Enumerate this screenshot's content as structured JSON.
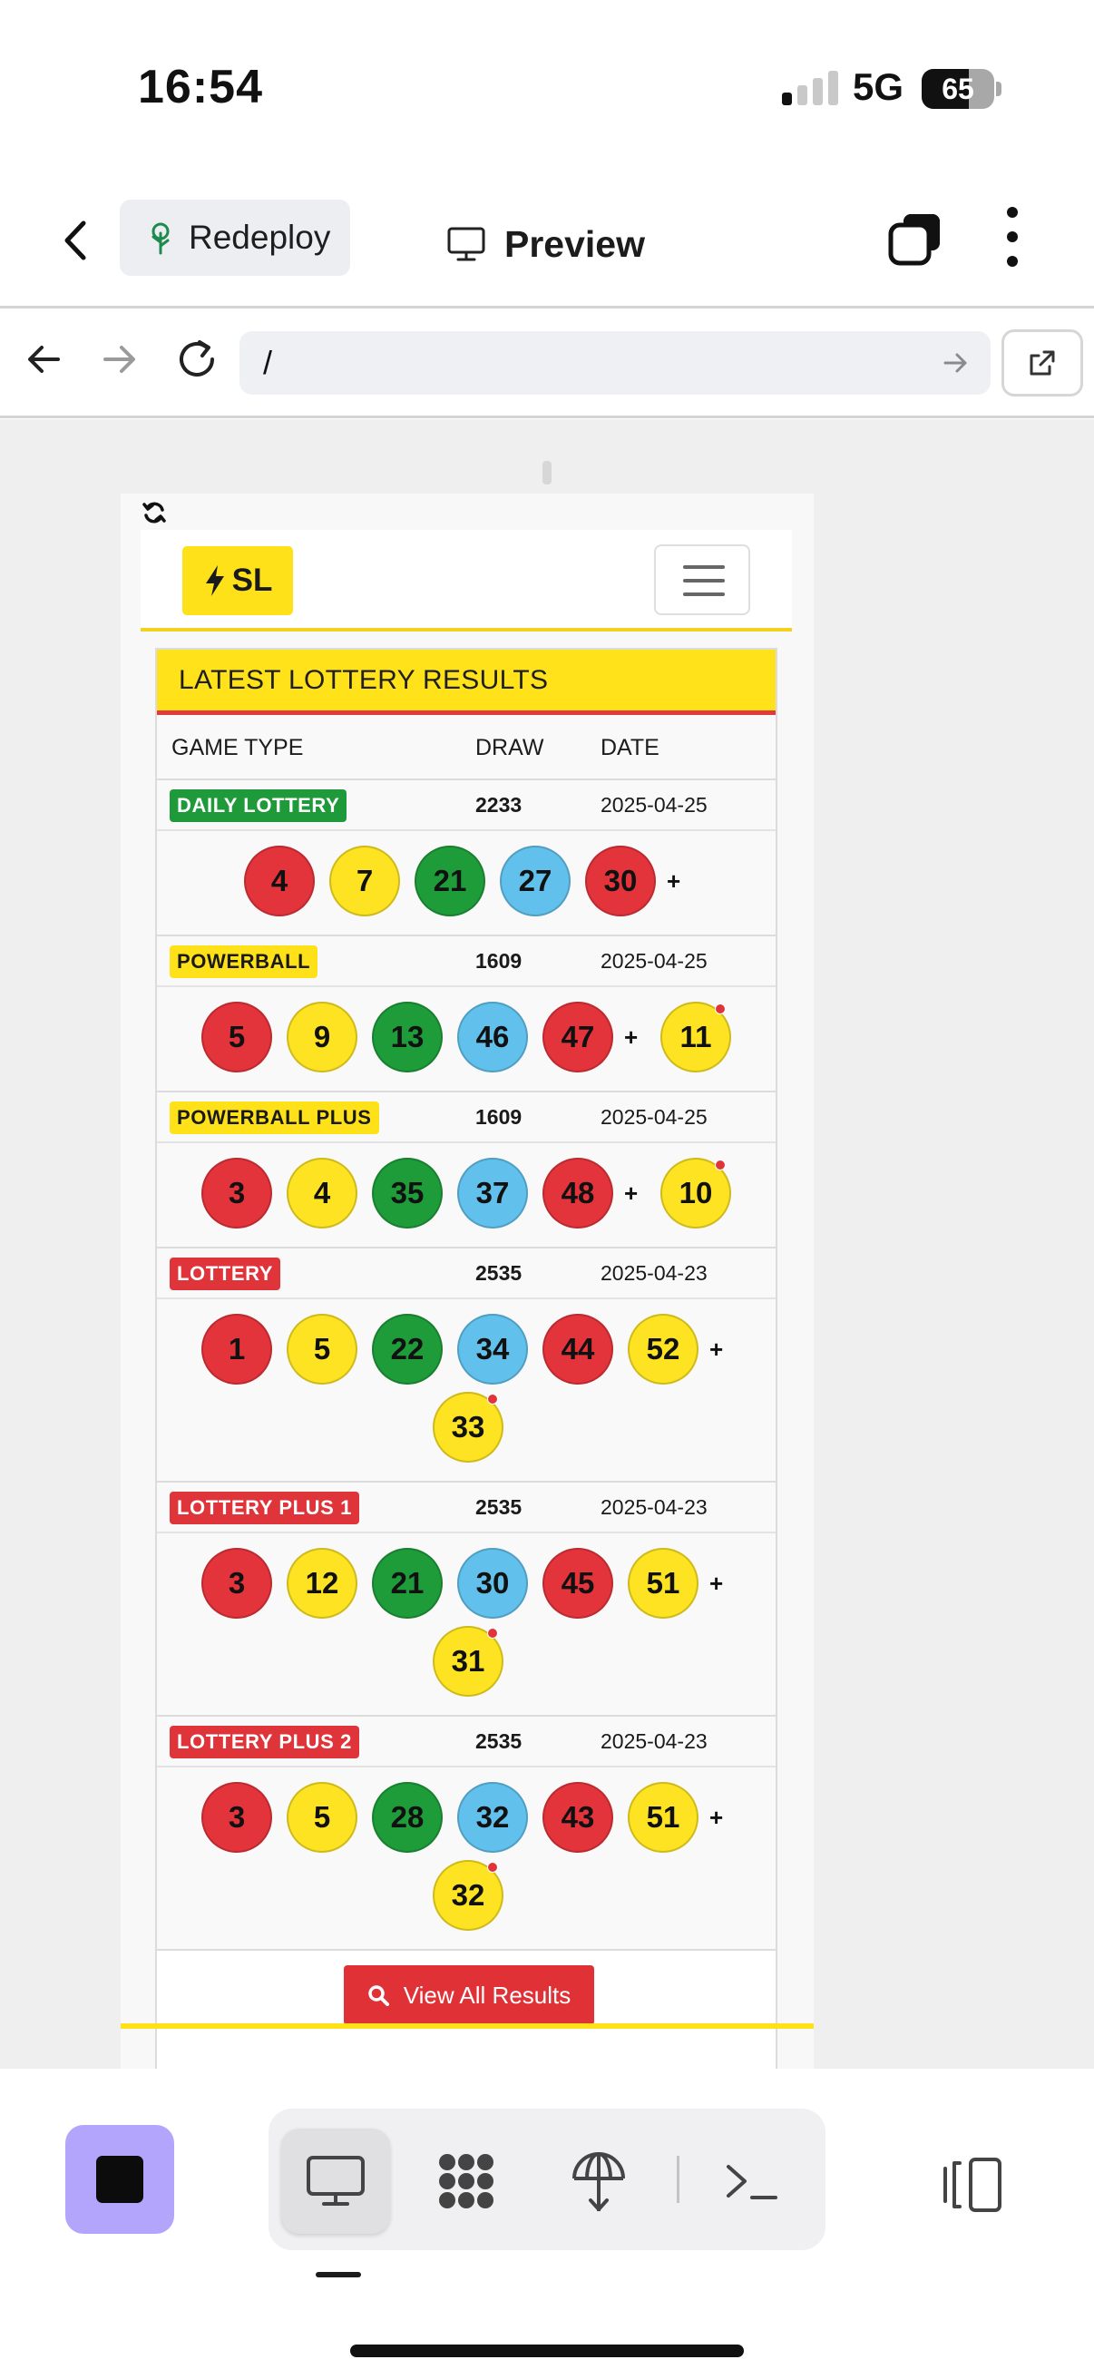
{
  "status_bar": {
    "time": "16:54",
    "network": "5G",
    "battery": "65",
    "battery_level": 0.65
  },
  "header": {
    "redeploy_label": "Redeploy",
    "title": "Preview"
  },
  "browser": {
    "url": "/"
  },
  "site": {
    "brand": "SL",
    "results_title": "LATEST LOTTERY RESULTS",
    "columns": {
      "game_type": "GAME TYPE",
      "draw": "DRAW",
      "date": "DATE"
    },
    "plus_sign": "+",
    "games": [
      {
        "name": "DAILY LOTTERY",
        "badge_color": "green",
        "draw": "2233",
        "date": "2025-04-25",
        "balls": [
          "4",
          "7",
          "21",
          "27",
          "30"
        ],
        "bonus": ""
      },
      {
        "name": "POWERBALL",
        "badge_color": "yellow",
        "draw": "1609",
        "date": "2025-04-25",
        "balls": [
          "5",
          "9",
          "13",
          "46",
          "47"
        ],
        "bonus": "11"
      },
      {
        "name": "POWERBALL PLUS",
        "badge_color": "yellow",
        "draw": "1609",
        "date": "2025-04-25",
        "balls": [
          "3",
          "4",
          "35",
          "37",
          "48"
        ],
        "bonus": "10"
      },
      {
        "name": "LOTTERY",
        "badge_color": "red",
        "draw": "2535",
        "date": "2025-04-23",
        "balls": [
          "1",
          "5",
          "22",
          "34",
          "44",
          "52"
        ],
        "bonus": "33"
      },
      {
        "name": "LOTTERY PLUS 1",
        "badge_color": "red",
        "draw": "2535",
        "date": "2025-04-23",
        "balls": [
          "3",
          "12",
          "21",
          "30",
          "45",
          "51"
        ],
        "bonus": "31"
      },
      {
        "name": "LOTTERY PLUS 2",
        "badge_color": "red",
        "draw": "2535",
        "date": "2025-04-23",
        "balls": [
          "3",
          "5",
          "28",
          "32",
          "43",
          "51"
        ],
        "bonus": "32"
      }
    ],
    "view_all_label": "View All Results"
  },
  "toolbar": {
    "items": [
      "preview-icon",
      "network-icon",
      "deploy-icon",
      "terminal-icon"
    ],
    "active": "preview-icon"
  },
  "colors": {
    "accent_yellow": "#ffe11a",
    "accent_red": "#e03137",
    "ball_red": "#e3343b",
    "ball_yellow": "#fde321",
    "ball_green": "#1f9c3a",
    "ball_blue": "#62c1ec",
    "stop_button": "#b3a5fb"
  }
}
